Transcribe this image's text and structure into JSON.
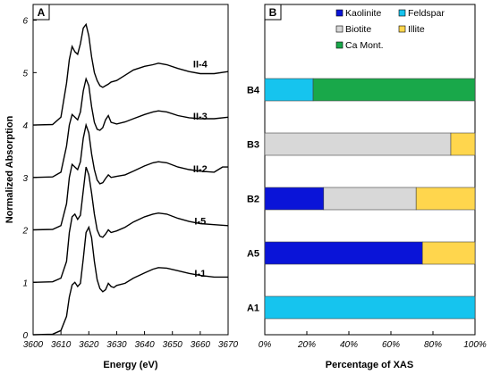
{
  "chart_data": [
    {
      "type": "line",
      "panel_label": "A",
      "xlabel": "Energy (eV)",
      "ylabel": "Normalized Absorption",
      "xlim": [
        3600,
        3670
      ],
      "ylim": [
        0,
        6.3
      ],
      "xticks": [
        "3600",
        "3610",
        "3620",
        "3630",
        "3640",
        "3650",
        "3660",
        "3670"
      ],
      "yticks": [
        "0",
        "1",
        "2",
        "3",
        "4",
        "5",
        "6"
      ],
      "grid": false,
      "series": [
        {
          "name": "I-1",
          "label_at": [
            3660,
            1.11
          ],
          "points": [
            [
              3600,
              0
            ],
            [
              3607,
              0.01
            ],
            [
              3610,
              0.08
            ],
            [
              3612,
              0.35
            ],
            [
              3613,
              0.72
            ],
            [
              3614,
              0.95
            ],
            [
              3615,
              1.0
            ],
            [
              3616,
              0.92
            ],
            [
              3617,
              0.98
            ],
            [
              3618,
              1.45
            ],
            [
              3619,
              1.95
            ],
            [
              3620,
              2.05
            ],
            [
              3621,
              1.85
            ],
            [
              3622,
              1.4
            ],
            [
              3623,
              1.05
            ],
            [
              3624,
              0.88
            ],
            [
              3625,
              0.82
            ],
            [
              3626,
              0.86
            ],
            [
              3627,
              0.98
            ],
            [
              3628,
              0.92
            ],
            [
              3629,
              0.9
            ],
            [
              3630,
              0.94
            ],
            [
              3633,
              0.98
            ],
            [
              3636,
              1.08
            ],
            [
              3640,
              1.18
            ],
            [
              3643,
              1.25
            ],
            [
              3645,
              1.28
            ],
            [
              3648,
              1.27
            ],
            [
              3652,
              1.22
            ],
            [
              3656,
              1.17
            ],
            [
              3660,
              1.13
            ],
            [
              3665,
              1.1
            ],
            [
              3670,
              1.1
            ]
          ]
        },
        {
          "name": "I-5",
          "label_at": [
            3660,
            2.1
          ],
          "points": [
            [
              3600,
              1
            ],
            [
              3607,
              1.01
            ],
            [
              3610,
              1.08
            ],
            [
              3612,
              1.4
            ],
            [
              3613,
              1.95
            ],
            [
              3614,
              2.25
            ],
            [
              3615,
              2.3
            ],
            [
              3616,
              2.2
            ],
            [
              3617,
              2.28
            ],
            [
              3618,
              2.75
            ],
            [
              3619,
              3.2
            ],
            [
              3620,
              3.05
            ],
            [
              3621,
              2.7
            ],
            [
              3622,
              2.3
            ],
            [
              3623,
              2.0
            ],
            [
              3624,
              1.88
            ],
            [
              3625,
              1.86
            ],
            [
              3626,
              1.92
            ],
            [
              3627,
              2.0
            ],
            [
              3628,
              1.95
            ],
            [
              3630,
              1.98
            ],
            [
              3633,
              2.05
            ],
            [
              3636,
              2.15
            ],
            [
              3640,
              2.25
            ],
            [
              3643,
              2.3
            ],
            [
              3645,
              2.32
            ],
            [
              3648,
              2.3
            ],
            [
              3652,
              2.22
            ],
            [
              3656,
              2.16
            ],
            [
              3660,
              2.12
            ],
            [
              3665,
              2.1
            ],
            [
              3670,
              2.08
            ]
          ]
        },
        {
          "name": "II-2",
          "label_at": [
            3660,
            3.1
          ],
          "points": [
            [
              3600,
              2
            ],
            [
              3607,
              2.01
            ],
            [
              3610,
              2.08
            ],
            [
              3612,
              2.5
            ],
            [
              3613,
              3.0
            ],
            [
              3614,
              3.25
            ],
            [
              3615,
              3.2
            ],
            [
              3616,
              3.15
            ],
            [
              3617,
              3.3
            ],
            [
              3618,
              3.75
            ],
            [
              3619,
              4.0
            ],
            [
              3620,
              3.85
            ],
            [
              3621,
              3.45
            ],
            [
              3622,
              3.15
            ],
            [
              3623,
              2.95
            ],
            [
              3624,
              2.88
            ],
            [
              3625,
              2.9
            ],
            [
              3626,
              2.98
            ],
            [
              3627,
              3.05
            ],
            [
              3628,
              3.0
            ],
            [
              3630,
              3.02
            ],
            [
              3633,
              3.05
            ],
            [
              3636,
              3.12
            ],
            [
              3640,
              3.22
            ],
            [
              3643,
              3.28
            ],
            [
              3645,
              3.3
            ],
            [
              3648,
              3.28
            ],
            [
              3652,
              3.2
            ],
            [
              3656,
              3.15
            ],
            [
              3660,
              3.12
            ],
            [
              3665,
              3.1
            ],
            [
              3668,
              3.2
            ],
            [
              3670,
              3.2
            ]
          ]
        },
        {
          "name": "II-3",
          "label_at": [
            3660,
            4.1
          ],
          "points": [
            [
              3600,
              3
            ],
            [
              3607,
              3.01
            ],
            [
              3610,
              3.1
            ],
            [
              3612,
              3.6
            ],
            [
              3613,
              4.0
            ],
            [
              3614,
              4.2
            ],
            [
              3615,
              4.15
            ],
            [
              3616,
              4.1
            ],
            [
              3617,
              4.25
            ],
            [
              3618,
              4.65
            ],
            [
              3619,
              4.88
            ],
            [
              3620,
              4.75
            ],
            [
              3621,
              4.35
            ],
            [
              3622,
              4.05
            ],
            [
              3623,
              3.92
            ],
            [
              3624,
              3.9
            ],
            [
              3625,
              3.95
            ],
            [
              3626,
              4.1
            ],
            [
              3627,
              4.18
            ],
            [
              3628,
              4.05
            ],
            [
              3630,
              4.02
            ],
            [
              3633,
              4.06
            ],
            [
              3636,
              4.12
            ],
            [
              3640,
              4.2
            ],
            [
              3643,
              4.25
            ],
            [
              3645,
              4.27
            ],
            [
              3648,
              4.25
            ],
            [
              3652,
              4.18
            ],
            [
              3656,
              4.14
            ],
            [
              3660,
              4.12
            ],
            [
              3665,
              4.12
            ],
            [
              3670,
              4.15
            ]
          ]
        },
        {
          "name": "II-4",
          "label_at": [
            3660,
            5.1
          ],
          "points": [
            [
              3600,
              4
            ],
            [
              3607,
              4.01
            ],
            [
              3610,
              4.15
            ],
            [
              3612,
              4.8
            ],
            [
              3613,
              5.25
            ],
            [
              3614,
              5.5
            ],
            [
              3615,
              5.4
            ],
            [
              3616,
              5.35
            ],
            [
              3617,
              5.55
            ],
            [
              3618,
              5.85
            ],
            [
              3619,
              5.92
            ],
            [
              3620,
              5.7
            ],
            [
              3621,
              5.3
            ],
            [
              3622,
              5.0
            ],
            [
              3623,
              4.85
            ],
            [
              3624,
              4.75
            ],
            [
              3625,
              4.72
            ],
            [
              3626,
              4.75
            ],
            [
              3627,
              4.78
            ],
            [
              3628,
              4.82
            ],
            [
              3630,
              4.85
            ],
            [
              3633,
              4.95
            ],
            [
              3636,
              5.05
            ],
            [
              3640,
              5.12
            ],
            [
              3643,
              5.15
            ],
            [
              3645,
              5.18
            ],
            [
              3648,
              5.15
            ],
            [
              3652,
              5.08
            ],
            [
              3656,
              5.02
            ],
            [
              3660,
              4.98
            ],
            [
              3665,
              4.98
            ],
            [
              3670,
              5.02
            ]
          ]
        }
      ]
    },
    {
      "type": "bar",
      "orientation": "horizontal",
      "stacked": true,
      "panel_label": "B",
      "xlabel": "Percentage of XAS",
      "xlim": [
        0,
        100
      ],
      "xticks": [
        "0%",
        "20%",
        "40%",
        "60%",
        "80%",
        "100%"
      ],
      "categories": [
        "B4",
        "B3",
        "B2",
        "A5",
        "A1"
      ],
      "legend_position": "top",
      "series": [
        {
          "name": "Kaolinite",
          "color": "#0a14d8",
          "values": [
            0,
            0,
            28,
            75,
            0
          ]
        },
        {
          "name": "Feldspar",
          "color": "#16c4ee",
          "values": [
            23,
            0,
            0,
            0,
            100
          ]
        },
        {
          "name": "Biotite",
          "color": "#d8d8d8",
          "values": [
            0,
            88.5,
            44,
            0,
            0
          ]
        },
        {
          "name": "Illite",
          "color": "#ffd64d",
          "values": [
            0,
            11.5,
            28,
            25,
            0
          ]
        },
        {
          "name": "Ca Mont.",
          "color": "#19a84a",
          "values": [
            77,
            0,
            0,
            0,
            0
          ]
        }
      ]
    }
  ]
}
